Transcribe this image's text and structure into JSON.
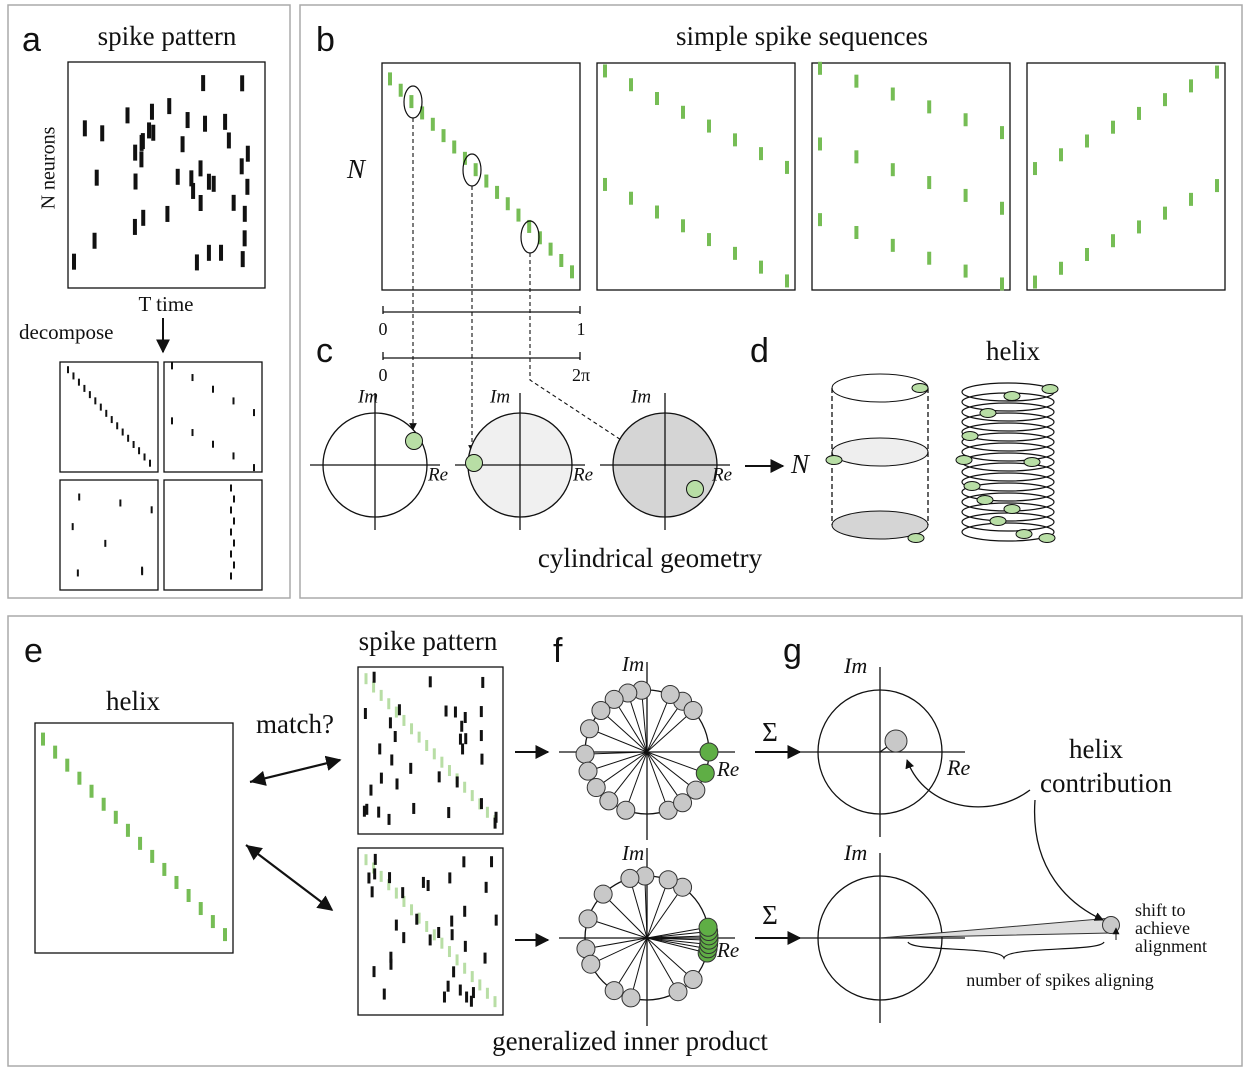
{
  "panel_a": {
    "label": "a",
    "title": "spike pattern",
    "y_label": "N neurons",
    "x_label": "T time",
    "arrow_label": "decompose"
  },
  "panel_b": {
    "label": "b",
    "title": "simple spike sequences",
    "y_label": "N",
    "scale_1": {
      "start": "0",
      "end": "1"
    },
    "scale_2": {
      "start": "0",
      "end": "2π"
    }
  },
  "panel_c": {
    "label": "c",
    "circles": [
      {
        "im": "Im",
        "re": "Re"
      },
      {
        "im": "Im",
        "re": "Re"
      },
      {
        "im": "Im",
        "re": "Re"
      }
    ],
    "caption": "cylindrical geometry"
  },
  "panel_d": {
    "label": "d",
    "n_label": "N",
    "helix_title": "helix"
  },
  "panel_e": {
    "label": "e",
    "title": "helix",
    "question": "match?",
    "pattern_title": "spike pattern"
  },
  "panel_f": {
    "label": "f",
    "axes": [
      {
        "im": "Im",
        "re": "Re"
      },
      {
        "im": "Im",
        "re": "Re"
      }
    ],
    "sums": [
      "Σ",
      "Σ"
    ]
  },
  "panel_g": {
    "label": "g",
    "axes": [
      {
        "im": "Im",
        "re": "Re"
      },
      {
        "im": "Im"
      }
    ],
    "helix_contribution": [
      "helix",
      "contribution"
    ],
    "shift_note": [
      "shift to",
      "achieve",
      "alignment"
    ],
    "spikes_note": "number of spikes aligning"
  },
  "caption": "generalized inner product"
}
